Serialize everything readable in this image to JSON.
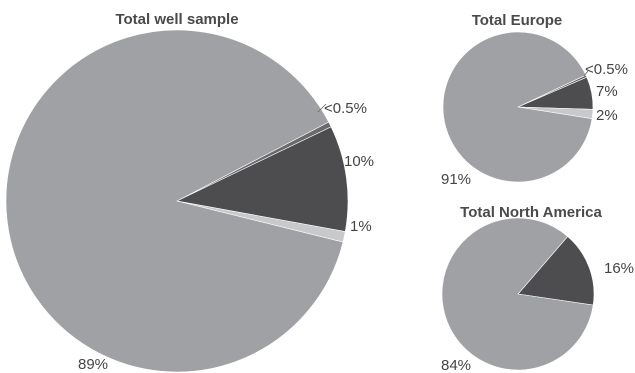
{
  "chart_data": [
    {
      "type": "pie",
      "title": "Total well sample",
      "slices": [
        {
          "value": 0.5,
          "label": "<0.5%",
          "color": "#6a6a6c"
        },
        {
          "value": 10,
          "label": "10%",
          "color": "#4d4d4f"
        },
        {
          "value": 1,
          "label": "1%",
          "color": "#c8c9cb"
        },
        {
          "value": 88.5,
          "label": "89%",
          "color": "#a0a1a4"
        }
      ]
    },
    {
      "type": "pie",
      "title": "Total Europe",
      "slices": [
        {
          "value": 0.5,
          "label": "<0.5%",
          "color": "#6a6a6c"
        },
        {
          "value": 7,
          "label": "7%",
          "color": "#4d4d4f"
        },
        {
          "value": 2,
          "label": "2%",
          "color": "#c8c9cb"
        },
        {
          "value": 90.5,
          "label": "91%",
          "color": "#a0a1a4"
        }
      ]
    },
    {
      "type": "pie",
      "title": "Total North America",
      "slices": [
        {
          "value": 16,
          "label": "16%",
          "color": "#4d4d4f"
        },
        {
          "value": 84,
          "label": "84%",
          "color": "#a0a1a4"
        }
      ]
    }
  ]
}
